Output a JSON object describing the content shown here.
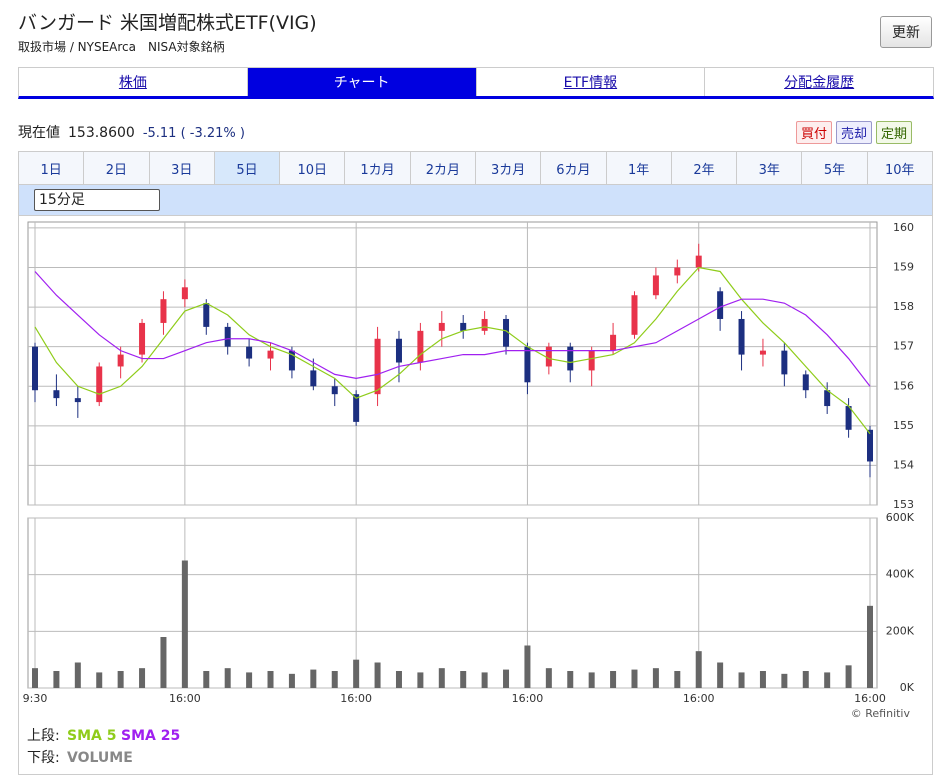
{
  "header": {
    "title": "バンガード 米国増配株式ETF(VIG)",
    "subtitle": "取扱市場 / NYSEArca　NISA対象銘柄",
    "update_button": "更新"
  },
  "tabs": [
    "株価",
    "チャート",
    "ETF情報",
    "分配金履歴"
  ],
  "quote": {
    "label": "現在値",
    "price": "153.8600",
    "change": "-5.11 ( -3.21% )"
  },
  "trade_buttons": [
    "買付",
    "売却",
    "定期"
  ],
  "periods": [
    "1日",
    "2日",
    "3日",
    "5日",
    "10日",
    "1カ月",
    "2カ月",
    "3カ月",
    "6カ月",
    "1年",
    "2年",
    "3年",
    "5年",
    "10年"
  ],
  "interval": "15分足",
  "credit": "© Refinitiv",
  "chart_data": {
    "type": "candlestick",
    "categories": [
      "9:30",
      null,
      null,
      null,
      null,
      null,
      null,
      "16:00",
      null,
      null,
      null,
      null,
      null,
      null,
      null,
      "16:00",
      null,
      null,
      null,
      null,
      null,
      null,
      null,
      "16:00",
      null,
      null,
      null,
      null,
      null,
      null,
      null,
      "16:00",
      null,
      null,
      null,
      null,
      null,
      null,
      null,
      "16:00"
    ],
    "open": [
      157.0,
      155.9,
      155.7,
      155.6,
      156.5,
      156.8,
      157.6,
      158.2,
      158.1,
      157.5,
      157.0,
      156.7,
      156.9,
      156.4,
      156.0,
      155.8,
      155.8,
      157.2,
      156.6,
      157.4,
      157.6,
      157.4,
      157.7,
      157.0,
      156.5,
      157.0,
      156.4,
      156.9,
      157.3,
      158.3,
      158.8,
      159.0,
      158.4,
      157.7,
      156.8,
      156.9,
      156.3,
      155.9,
      155.5,
      154.9
    ],
    "high": [
      157.1,
      156.3,
      156.0,
      156.6,
      157.0,
      157.7,
      158.4,
      158.7,
      158.2,
      157.6,
      157.2,
      157.1,
      157.0,
      156.7,
      156.2,
      155.9,
      157.5,
      157.4,
      157.6,
      157.9,
      157.8,
      157.9,
      157.8,
      157.1,
      157.1,
      157.1,
      157.0,
      157.6,
      158.4,
      159.0,
      159.2,
      159.6,
      158.5,
      157.9,
      157.2,
      157.1,
      156.4,
      156.1,
      155.7,
      155.0
    ],
    "low": [
      155.6,
      155.5,
      155.2,
      155.5,
      156.2,
      156.6,
      157.3,
      158.0,
      157.3,
      156.8,
      156.5,
      156.4,
      156.2,
      155.9,
      155.5,
      155.0,
      155.5,
      156.1,
      156.4,
      157.0,
      157.2,
      157.3,
      156.8,
      155.8,
      156.3,
      156.1,
      156.0,
      156.8,
      157.2,
      158.2,
      158.6,
      158.9,
      157.4,
      156.4,
      156.5,
      156.0,
      155.7,
      155.3,
      154.7,
      153.7
    ],
    "close": [
      155.9,
      155.7,
      155.6,
      156.5,
      156.8,
      157.6,
      158.2,
      158.5,
      157.5,
      157.0,
      156.7,
      156.9,
      156.4,
      156.0,
      155.8,
      155.1,
      157.2,
      156.6,
      157.4,
      157.6,
      157.4,
      157.7,
      157.0,
      156.1,
      157.0,
      156.4,
      156.9,
      157.3,
      158.3,
      158.8,
      159.0,
      159.3,
      157.7,
      156.8,
      156.9,
      156.3,
      155.9,
      155.5,
      154.9,
      154.1
    ],
    "up_color": "#e8334a",
    "down_color": "#1c2f80",
    "series": [
      {
        "name": "SMA 5",
        "color": "#8fcc1a",
        "values": [
          157.5,
          156.6,
          156.0,
          155.8,
          156.0,
          156.5,
          157.2,
          157.9,
          158.1,
          157.8,
          157.3,
          157.0,
          156.8,
          156.5,
          156.2,
          155.7,
          155.9,
          156.3,
          156.8,
          157.2,
          157.4,
          157.5,
          157.4,
          157.0,
          156.7,
          156.6,
          156.7,
          156.8,
          157.1,
          157.7,
          158.4,
          159.0,
          158.9,
          158.2,
          157.6,
          157.1,
          156.5,
          155.9,
          155.5,
          154.8
        ]
      },
      {
        "name": "SMA 25",
        "color": "#a020f0",
        "values": [
          158.9,
          158.3,
          157.8,
          157.3,
          156.9,
          156.7,
          156.7,
          156.9,
          157.1,
          157.2,
          157.2,
          157.1,
          156.9,
          156.6,
          156.3,
          156.2,
          156.3,
          156.5,
          156.6,
          156.7,
          156.8,
          156.8,
          156.9,
          156.9,
          156.9,
          156.9,
          156.9,
          156.9,
          157.0,
          157.1,
          157.4,
          157.7,
          158.0,
          158.2,
          158.2,
          158.1,
          157.8,
          157.3,
          156.7,
          156.0
        ]
      }
    ],
    "volume": {
      "name": "VOLUME",
      "color": "#666666",
      "values": [
        70000,
        60000,
        90000,
        55000,
        60000,
        70000,
        180000,
        450000,
        60000,
        70000,
        55000,
        60000,
        50000,
        65000,
        60000,
        100000,
        90000,
        60000,
        55000,
        70000,
        60000,
        55000,
        65000,
        150000,
        70000,
        60000,
        55000,
        60000,
        65000,
        70000,
        60000,
        130000,
        90000,
        55000,
        60000,
        50000,
        60000,
        55000,
        80000,
        290000
      ]
    },
    "ylim": [
      153,
      160.15
    ],
    "yticks": [
      153,
      154,
      155,
      156,
      157,
      158,
      159,
      160
    ],
    "vlim": [
      0,
      600000
    ],
    "vticks": [
      {
        "value": 0,
        "label": "0K"
      },
      {
        "value": 200000,
        "label": "200K"
      },
      {
        "value": 400000,
        "label": "400K"
      },
      {
        "value": 600000,
        "label": "600K"
      }
    ],
    "upper_label": "上段:",
    "lower_label": "下段:",
    "grid": true
  }
}
